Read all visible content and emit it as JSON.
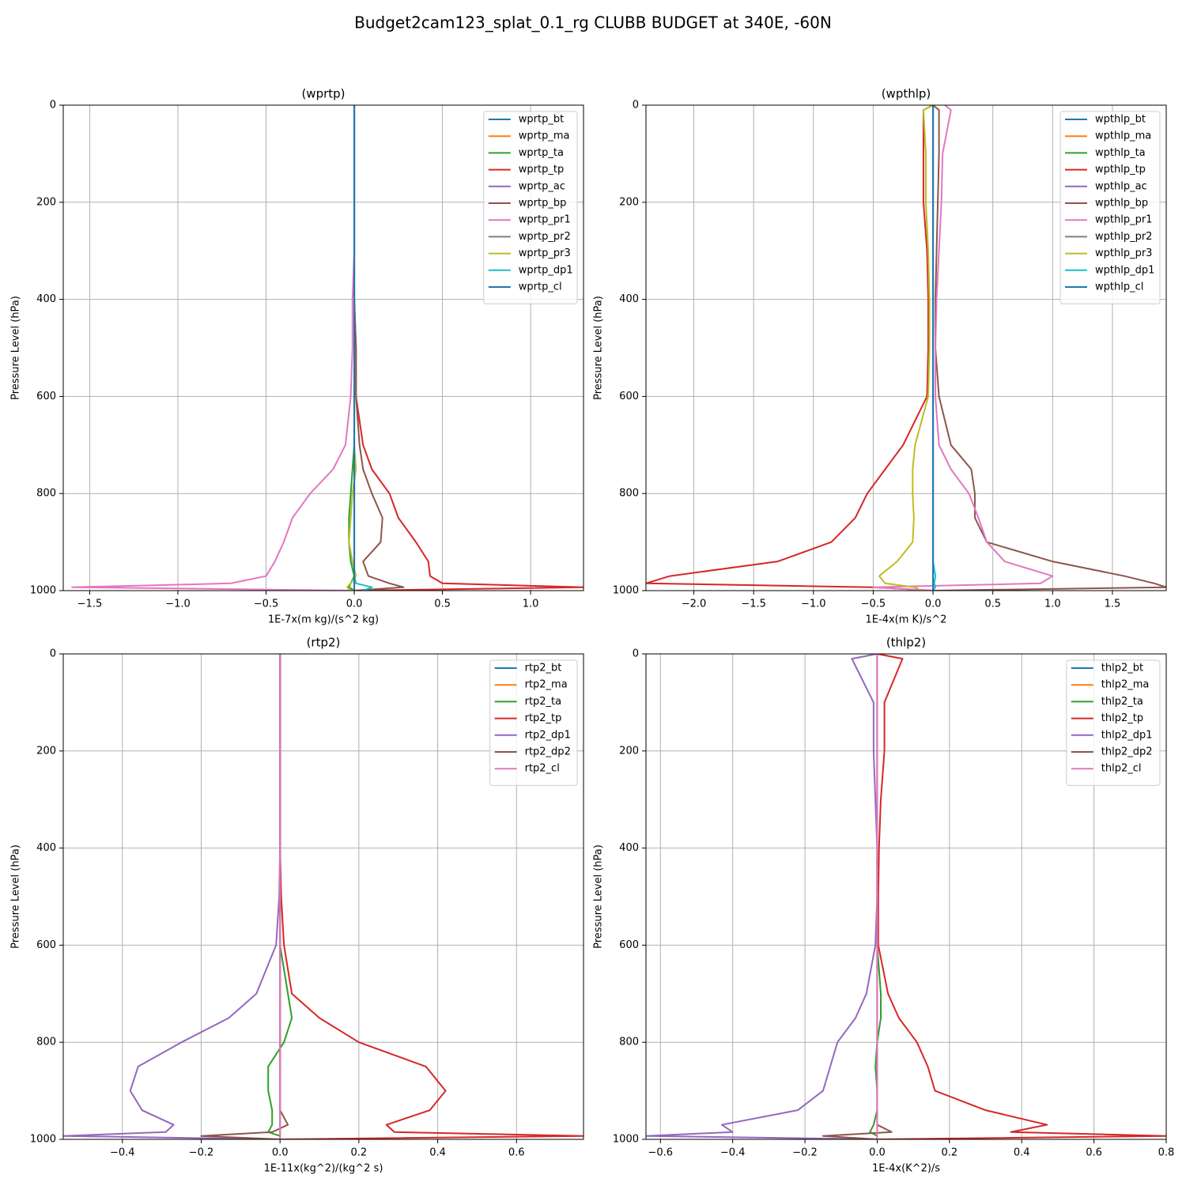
{
  "title": "Budget2cam123_splat_0.1_rg CLUBB BUDGET at 340E, -60N",
  "chart_data": [
    {
      "type": "line",
      "title": "(wprtp)",
      "xlabel": "1E-7x(m kg)/(s^2 kg)",
      "ylabel": "Pressure Level (hPa)",
      "grid": true,
      "legend": "upper right",
      "xlim": [
        -1.65,
        1.3
      ],
      "ylim": [
        1000,
        0
      ],
      "xticks": [
        {
          "value": -1.5,
          "label": "−1.5"
        },
        {
          "value": -1.0,
          "label": "−1.0"
        },
        {
          "value": -0.5,
          "label": "−0.5"
        },
        {
          "value": 0,
          "label": "0.0"
        },
        {
          "value": 0.5,
          "label": "0.5"
        },
        {
          "value": 1.0,
          "label": "1.0"
        }
      ],
      "yticks": [
        0,
        200,
        400,
        600,
        800,
        1000
      ],
      "y": [
        0,
        10,
        100,
        200,
        300,
        400,
        500,
        600,
        700,
        750,
        800,
        850,
        900,
        940,
        970,
        985,
        993,
        1000
      ],
      "series": [
        {
          "name": "wprtp_bt",
          "color": "#1f77b4",
          "values": [
            0,
            0,
            0,
            0,
            0,
            0,
            0,
            0,
            0,
            0,
            0,
            0,
            0,
            0,
            0,
            0,
            0,
            0
          ]
        },
        {
          "name": "wprtp_ma",
          "color": "#ff7f0e",
          "values": [
            0,
            0,
            0,
            0,
            0,
            0,
            0,
            0,
            0,
            0,
            0,
            0,
            0,
            0,
            0,
            0,
            0,
            0
          ]
        },
        {
          "name": "wprtp_ta",
          "color": "#2ca02c",
          "values": [
            0,
            0,
            0,
            0,
            0,
            0,
            0,
            0,
            0,
            -0.01,
            -0.02,
            -0.03,
            -0.03,
            -0.02,
            0,
            -0.02,
            -0.03,
            0
          ]
        },
        {
          "name": "wprtp_tp",
          "color": "#d62728",
          "values": [
            0,
            0,
            0,
            0,
            0,
            0,
            0.01,
            0.01,
            0.05,
            0.1,
            0.2,
            0.25,
            0.35,
            0.42,
            0.43,
            0.5,
            1.3,
            0
          ]
        },
        {
          "name": "wprtp_ac",
          "color": "#9467bd",
          "values": [
            0,
            0,
            0,
            0,
            0,
            0,
            0,
            0,
            0,
            0,
            0,
            0,
            0,
            0,
            0,
            0,
            0,
            0
          ]
        },
        {
          "name": "wprtp_bp",
          "color": "#8c564b",
          "values": [
            0,
            0,
            0,
            0,
            0,
            0,
            0.01,
            0.01,
            0.03,
            0.05,
            0.1,
            0.16,
            0.15,
            0.05,
            0.08,
            0.2,
            0.28,
            0
          ]
        },
        {
          "name": "wprtp_pr1",
          "color": "#e377c2",
          "values": [
            0,
            0,
            0,
            0,
            0,
            -0.01,
            -0.01,
            -0.02,
            -0.05,
            -0.12,
            -0.25,
            -0.35,
            -0.4,
            -0.45,
            -0.5,
            -0.7,
            -1.6,
            0
          ]
        },
        {
          "name": "wprtp_pr2",
          "color": "#7f7f7f",
          "values": [
            0,
            0,
            0,
            0,
            0,
            0,
            0,
            0,
            0,
            0,
            0,
            0,
            0,
            0,
            0,
            0,
            0,
            0
          ]
        },
        {
          "name": "wprtp_pr3",
          "color": "#bcbd22",
          "values": [
            0,
            0,
            0,
            0,
            0,
            0,
            0,
            0,
            0,
            0.01,
            -0.01,
            -0.02,
            -0.03,
            -0.01,
            0.01,
            -0.02,
            -0.04,
            -0.02
          ]
        },
        {
          "name": "wprtp_dp1",
          "color": "#17becf",
          "values": [
            0,
            0,
            0,
            0,
            0,
            0,
            0,
            0,
            0,
            0,
            0,
            0,
            0,
            0,
            0,
            0.01,
            0.1,
            0.05
          ]
        },
        {
          "name": "wprtp_cl",
          "color": "#1f77b4",
          "values": [
            0,
            0,
            0,
            0,
            0,
            0,
            0,
            0,
            0,
            0,
            0,
            0,
            0,
            0,
            0,
            0,
            0,
            0
          ]
        }
      ]
    },
    {
      "type": "line",
      "title": "(wpthlp)",
      "xlabel": "1E-4x(m K)/s^2",
      "ylabel": "Pressure Level (hPa)",
      "grid": true,
      "legend": "upper right",
      "xlim": [
        -2.4,
        1.95
      ],
      "ylim": [
        1000,
        0
      ],
      "xticks": [
        {
          "value": -2.0,
          "label": "−2.0"
        },
        {
          "value": -1.5,
          "label": "−1.5"
        },
        {
          "value": -1.0,
          "label": "−1.0"
        },
        {
          "value": -0.5,
          "label": "−0.5"
        },
        {
          "value": 0,
          "label": "0.0"
        },
        {
          "value": 0.5,
          "label": "0.5"
        },
        {
          "value": 1.0,
          "label": "1.0"
        },
        {
          "value": 1.5,
          "label": "1.5"
        }
      ],
      "yticks": [
        0,
        200,
        400,
        600,
        800,
        1000
      ],
      "y": [
        0,
        10,
        100,
        200,
        300,
        400,
        500,
        600,
        700,
        750,
        800,
        850,
        900,
        940,
        970,
        985,
        993,
        1000
      ],
      "series": [
        {
          "name": "wpthlp_bt",
          "color": "#1f77b4",
          "values": [
            0,
            0,
            0,
            0,
            0,
            0,
            0,
            0,
            0,
            0,
            0,
            0,
            0,
            0,
            0,
            0,
            0,
            0
          ]
        },
        {
          "name": "wpthlp_ma",
          "color": "#ff7f0e",
          "values": [
            0,
            0,
            0,
            0,
            0,
            0,
            0,
            0,
            0,
            0,
            0,
            0,
            0,
            0,
            0,
            0,
            0,
            0
          ]
        },
        {
          "name": "wpthlp_ta",
          "color": "#2ca02c",
          "values": [
            0,
            0,
            0,
            0,
            0,
            0,
            0,
            0,
            0,
            0,
            0,
            0,
            0,
            0,
            0,
            0,
            0,
            0
          ]
        },
        {
          "name": "wpthlp_tp",
          "color": "#d62728",
          "values": [
            0,
            -0.08,
            -0.08,
            -0.08,
            -0.05,
            -0.04,
            -0.04,
            -0.05,
            -0.25,
            -0.4,
            -0.55,
            -0.65,
            -0.85,
            -1.3,
            -2.2,
            -2.4,
            -0.5,
            0
          ]
        },
        {
          "name": "wpthlp_ac",
          "color": "#9467bd",
          "values": [
            0,
            0,
            0,
            0,
            0,
            0,
            0,
            0,
            0,
            0,
            0,
            0,
            0,
            0,
            0,
            0,
            0,
            0
          ]
        },
        {
          "name": "wpthlp_bp",
          "color": "#8c564b",
          "values": [
            0,
            0.05,
            0.05,
            0.04,
            0.03,
            0.02,
            0.02,
            0.05,
            0.15,
            0.32,
            0.35,
            0.35,
            0.45,
            1.0,
            1.6,
            1.85,
            1.95,
            0
          ]
        },
        {
          "name": "wpthlp_pr1",
          "color": "#e377c2",
          "values": [
            0.1,
            0.15,
            0.08,
            0.07,
            0.05,
            0.03,
            0.02,
            0.02,
            0.05,
            0.15,
            0.3,
            0.38,
            0.45,
            0.6,
            1.0,
            0.9,
            -0.5,
            0
          ]
        },
        {
          "name": "wpthlp_pr2",
          "color": "#7f7f7f",
          "values": [
            0,
            0,
            0,
            0,
            0,
            0,
            0,
            0,
            0,
            0,
            0,
            0,
            0,
            0,
            0,
            0,
            0,
            0
          ]
        },
        {
          "name": "wpthlp_pr3",
          "color": "#bcbd22",
          "values": [
            0,
            -0.08,
            -0.06,
            -0.06,
            -0.04,
            -0.03,
            -0.03,
            -0.04,
            -0.15,
            -0.17,
            -0.17,
            -0.16,
            -0.17,
            -0.3,
            -0.45,
            -0.4,
            -0.15,
            -0.1
          ]
        },
        {
          "name": "wpthlp_dp1",
          "color": "#17becf",
          "values": [
            0,
            0,
            0,
            0,
            0,
            0,
            0,
            0,
            0,
            0,
            0,
            0,
            0,
            0,
            0.02,
            0.01,
            0.02,
            0
          ]
        },
        {
          "name": "wpthlp_cl",
          "color": "#1f77b4",
          "values": [
            0,
            0,
            0,
            0,
            0,
            0,
            0,
            0,
            0,
            0,
            0,
            0,
            0,
            0,
            0,
            0,
            0,
            0
          ]
        }
      ]
    },
    {
      "type": "line",
      "title": "(rtp2)",
      "xlabel": "1E-11x(kg^2)/(kg^2 s)",
      "ylabel": "Pressure Level (hPa)",
      "grid": true,
      "legend": "upper right",
      "xlim": [
        -0.55,
        0.77
      ],
      "ylim": [
        1000,
        0
      ],
      "xticks": [
        {
          "value": -0.4,
          "label": "−0.4"
        },
        {
          "value": -0.2,
          "label": "−0.2"
        },
        {
          "value": 0,
          "label": "0.0"
        },
        0.2,
        0.4,
        0.6
      ],
      "yticks": [
        0,
        200,
        400,
        600,
        800,
        1000
      ],
      "y": [
        0,
        10,
        100,
        200,
        300,
        400,
        500,
        600,
        700,
        750,
        800,
        850,
        900,
        940,
        970,
        985,
        993,
        1000
      ],
      "series": [
        {
          "name": "rtp2_bt",
          "color": "#1f77b4",
          "values": [
            0,
            0,
            0,
            0,
            0,
            0,
            0,
            0,
            0,
            0,
            0,
            0,
            0,
            0,
            0,
            0,
            0,
            0
          ]
        },
        {
          "name": "rtp2_ma",
          "color": "#ff7f0e",
          "values": [
            0,
            0,
            0,
            0,
            0,
            0,
            0,
            0,
            0,
            0,
            0,
            0,
            0,
            0,
            0,
            0,
            0,
            0
          ]
        },
        {
          "name": "rtp2_ta",
          "color": "#2ca02c",
          "values": [
            0,
            0,
            0,
            0,
            0,
            0,
            0,
            0,
            0.02,
            0.03,
            0.01,
            -0.03,
            -0.03,
            -0.02,
            -0.02,
            -0.03,
            0,
            0
          ]
        },
        {
          "name": "rtp2_tp",
          "color": "#d62728",
          "values": [
            0,
            0,
            0,
            0,
            0,
            0,
            0.003,
            0.01,
            0.03,
            0.1,
            0.2,
            0.37,
            0.42,
            0.38,
            0.27,
            0.29,
            0.77,
            0
          ]
        },
        {
          "name": "rtp2_dp1",
          "color": "#9467bd",
          "values": [
            0,
            0,
            0,
            0,
            0,
            0,
            -0.002,
            -0.01,
            -0.06,
            -0.13,
            -0.25,
            -0.36,
            -0.38,
            -0.35,
            -0.27,
            -0.29,
            -0.55,
            0
          ]
        },
        {
          "name": "rtp2_dp2",
          "color": "#8c564b",
          "values": [
            0,
            0,
            0,
            0,
            0,
            0,
            0,
            0,
            0,
            0,
            0,
            0,
            0,
            0,
            0.02,
            -0.02,
            -0.2,
            0
          ]
        },
        {
          "name": "rtp2_cl",
          "color": "#e377c2",
          "values": [
            0,
            0,
            0,
            0,
            0,
            0,
            0,
            0,
            0,
            0,
            0,
            0,
            0,
            0,
            0,
            0,
            0,
            0
          ]
        }
      ]
    },
    {
      "type": "line",
      "title": "(thlp2)",
      "xlabel": "1E-4x(K^2)/s",
      "ylabel": "Pressure Level (hPa)",
      "grid": true,
      "legend": "upper right",
      "xlim": [
        -0.64,
        0.8
      ],
      "ylim": [
        1000,
        0
      ],
      "xticks": [
        {
          "value": -0.6,
          "label": "−0.6"
        },
        {
          "value": -0.4,
          "label": "−0.4"
        },
        {
          "value": -0.2,
          "label": "−0.2"
        },
        {
          "value": 0,
          "label": "0.0"
        },
        0.2,
        0.4,
        0.6,
        0.8
      ],
      "yticks": [
        0,
        200,
        400,
        600,
        800,
        1000
      ],
      "y": [
        0,
        10,
        100,
        200,
        300,
        400,
        500,
        600,
        700,
        750,
        800,
        850,
        900,
        940,
        970,
        985,
        993,
        1000
      ],
      "series": [
        {
          "name": "thlp2_bt",
          "color": "#1f77b4",
          "values": [
            0,
            0,
            0,
            0,
            0,
            0,
            0,
            0,
            0,
            0,
            0,
            0,
            0,
            0,
            0,
            0,
            0,
            0
          ]
        },
        {
          "name": "thlp2_ma",
          "color": "#ff7f0e",
          "values": [
            0,
            0,
            0,
            0,
            0,
            0,
            0,
            0,
            0,
            0,
            0,
            0,
            0,
            0,
            0,
            0,
            0,
            0
          ]
        },
        {
          "name": "thlp2_ta",
          "color": "#2ca02c",
          "values": [
            0,
            0,
            0,
            0,
            0,
            0,
            0,
            0,
            0.01,
            0.01,
            0,
            -0.005,
            0,
            0,
            -0.01,
            -0.02,
            0,
            0
          ]
        },
        {
          "name": "thlp2_tp",
          "color": "#d62728",
          "values": [
            0,
            0.07,
            0.02,
            0.02,
            0.01,
            0.005,
            0.003,
            0.003,
            0.03,
            0.06,
            0.11,
            0.14,
            0.16,
            0.3,
            0.47,
            0.37,
            0.8,
            0
          ]
        },
        {
          "name": "thlp2_dp1",
          "color": "#9467bd",
          "values": [
            0,
            -0.07,
            -0.01,
            -0.01,
            -0.005,
            0,
            0,
            -0.005,
            -0.03,
            -0.06,
            -0.11,
            -0.13,
            -0.15,
            -0.22,
            -0.43,
            -0.4,
            -0.64,
            0
          ]
        },
        {
          "name": "thlp2_dp2",
          "color": "#8c564b",
          "values": [
            0,
            0,
            0,
            0,
            0,
            0,
            0,
            0,
            0,
            0,
            0,
            0,
            0,
            0,
            0,
            0.04,
            -0.15,
            0
          ]
        },
        {
          "name": "thlp2_cl",
          "color": "#e377c2",
          "values": [
            0,
            0,
            0,
            0,
            0,
            0,
            0,
            0,
            0,
            0,
            0,
            0,
            0,
            0,
            0,
            0,
            0,
            0
          ]
        }
      ]
    }
  ]
}
